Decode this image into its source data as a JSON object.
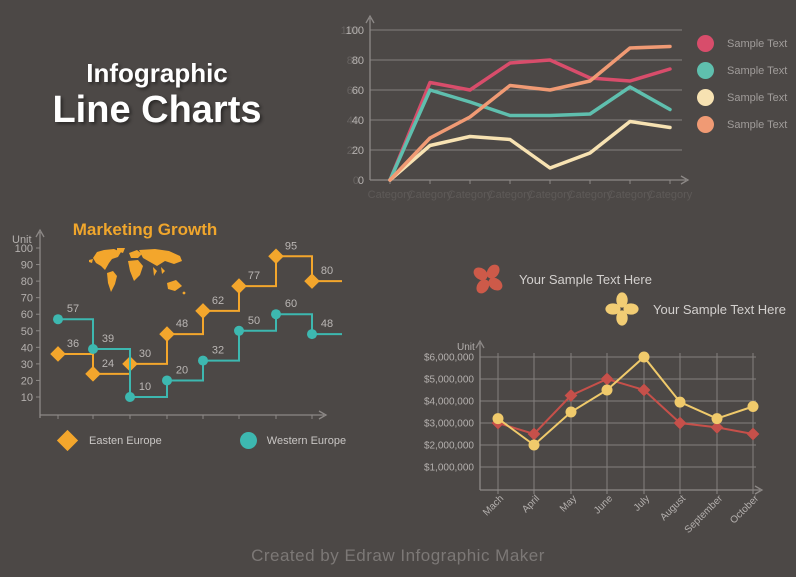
{
  "page": {
    "title_line1": "Infographic",
    "title_line2": "Line Charts",
    "footer": "Created by Edraw Infographic Maker"
  },
  "colors": {
    "background": "#4c4846",
    "axis": "#8d8987",
    "grid": "#837f7d",
    "tick_label": "#b4b0ae",
    "faint_label": "#5e5a58",
    "legend_label": "#a09c9a",
    "point_label": "#bab6b4",
    "map_orange": "#f3a62c",
    "title_orange": "#f0a62c",
    "annotation_label": "#d3d0ce",
    "footer_text": "#7c7876"
  },
  "chart_data": [
    {
      "id": "sample-line-chart",
      "type": "line",
      "title": "",
      "categories": [
        "Category",
        "Category",
        "Category",
        "Category",
        "Category",
        "Category",
        "Category",
        "Category"
      ],
      "yticks": [
        0,
        20,
        40,
        60,
        80,
        100
      ],
      "ylim": [
        0,
        100
      ],
      "grid": "horizontal",
      "legend_position": "right",
      "series": [
        {
          "name": "Sample Text",
          "color": "#d84d6b",
          "values": [
            0,
            65,
            60,
            78,
            80,
            68,
            66,
            74
          ]
        },
        {
          "name": "Sample Text",
          "color": "#5fbfae",
          "values": [
            0,
            60,
            52,
            43,
            43,
            44,
            62,
            47
          ]
        },
        {
          "name": "Sample Text",
          "color": "#f7e2b2",
          "values": [
            0,
            23,
            29,
            27,
            8,
            18,
            39,
            35
          ]
        },
        {
          "name": "Sample Text",
          "color": "#f09a74",
          "values": [
            0,
            28,
            42,
            63,
            60,
            66,
            88,
            89
          ]
        }
      ]
    },
    {
      "id": "marketing-growth-step-chart",
      "type": "line-step",
      "title": "Marketing Growth",
      "ylabel": "Unit",
      "yticks": [
        10,
        20,
        30,
        40,
        50,
        60,
        70,
        80,
        90,
        100
      ],
      "ylim": [
        0,
        100
      ],
      "grid": "none",
      "legend_position": "bottom",
      "point_labels": true,
      "series": [
        {
          "name": "Easten Europe",
          "color": "#f3a62c",
          "marker": "diamond",
          "values": [
            36,
            24,
            30,
            48,
            62,
            77,
            95,
            80
          ]
        },
        {
          "name": "Western Europe",
          "color": "#3db8b0",
          "marker": "circle",
          "values": [
            57,
            39,
            10,
            20,
            32,
            50,
            60,
            48
          ]
        }
      ]
    },
    {
      "id": "monthly-sales-line-chart",
      "type": "line",
      "title": "",
      "ylabel": "Unit",
      "categories": [
        "Mach",
        "April",
        "May",
        "June",
        "July",
        "August",
        "September",
        "October"
      ],
      "ytick_labels": [
        "$1,000,000",
        "$2,000,000",
        "$3,000,000",
        "$4,000,000",
        "$5,000,000",
        "$6,000,000"
      ],
      "ylim": [
        0,
        6500000
      ],
      "grid": "both",
      "series": [
        {
          "name": "Your Sample Text Here",
          "color": "#c6504a",
          "marker": "diamond",
          "values": [
            3000000,
            2500000,
            4250000,
            5000000,
            4500000,
            3000000,
            2800000,
            2500000
          ]
        },
        {
          "name": "Your Sample Text Here",
          "color": "#f0ca6b",
          "marker": "circle",
          "values": [
            3200000,
            2000000,
            3500000,
            4500000,
            6000000,
            3950000,
            3200000,
            3750000
          ]
        }
      ]
    }
  ],
  "annotations": [
    {
      "icon": "flower-icon",
      "color": "#cd5a49",
      "label": "Your Sample Text Here"
    },
    {
      "icon": "flower-icon",
      "color": "#f2cd74",
      "label": "Your Sample Text Here"
    }
  ]
}
